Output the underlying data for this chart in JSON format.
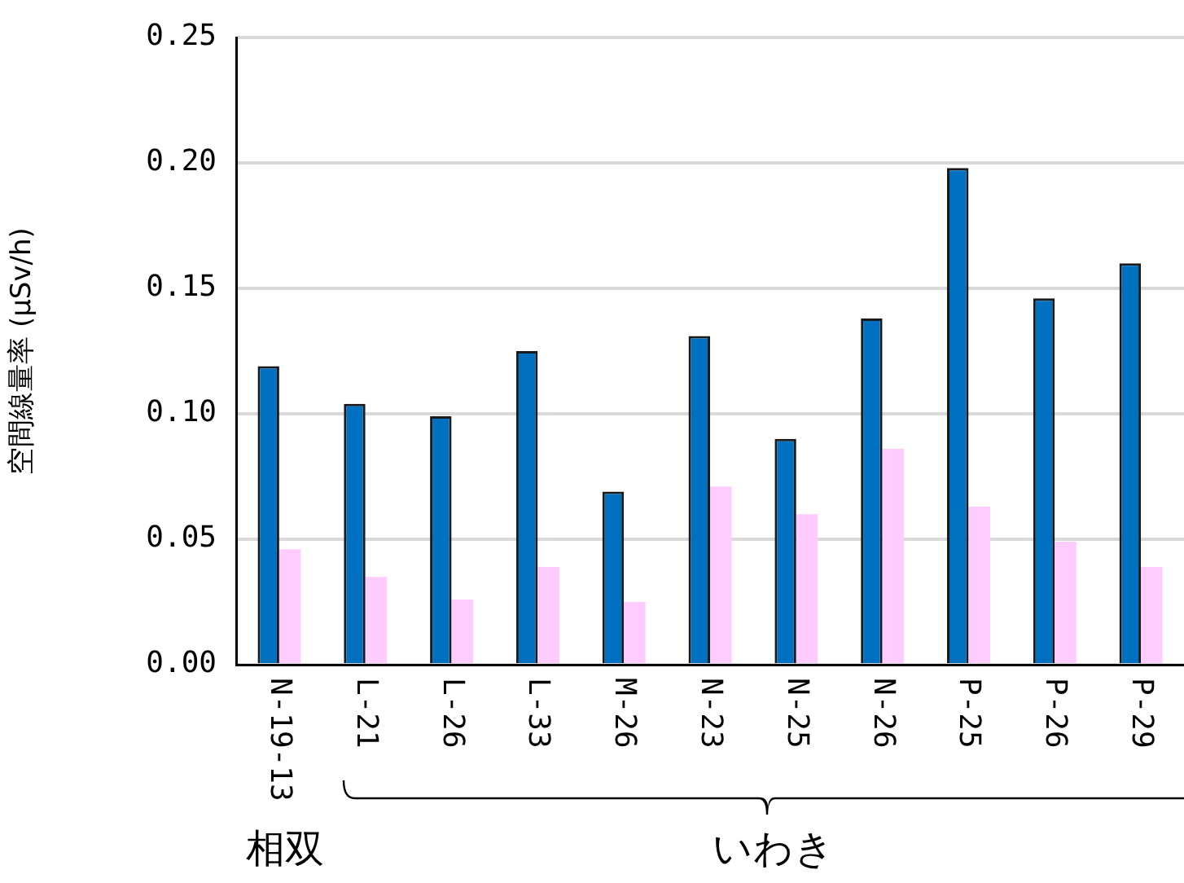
{
  "chart_data": {
    "type": "bar",
    "ylabel": "空間線量率 (μSv/h)",
    "categories": [
      "N-19-13",
      "L-21",
      "L-26",
      "L-33",
      "M-26",
      "N-23",
      "N-25",
      "N-26",
      "P-25",
      "P-26",
      "P-29"
    ],
    "series": [
      {
        "color": "#0070c0",
        "values": [
          0.119,
          0.104,
          0.099,
          0.125,
          0.069,
          0.131,
          0.09,
          0.138,
          0.198,
          0.146,
          0.16
        ]
      },
      {
        "color": "#ffccff",
        "values": [
          0.046,
          0.035,
          0.026,
          0.039,
          0.025,
          0.071,
          0.06,
          0.086,
          0.063,
          0.049,
          0.039
        ]
      }
    ],
    "ylim": [
      0,
      0.25
    ],
    "yticks": [
      {
        "value": 0,
        "label": "0.00"
      },
      {
        "value": 0.05,
        "label": "0.05"
      },
      {
        "value": 0.1,
        "label": "0.10"
      },
      {
        "value": 0.15,
        "label": "0.15"
      },
      {
        "value": 0.2,
        "label": "0.20"
      },
      {
        "value": 0.25,
        "label": "0.25"
      }
    ],
    "grid": "y",
    "annotations": [
      "相双",
      "いわき"
    ]
  }
}
